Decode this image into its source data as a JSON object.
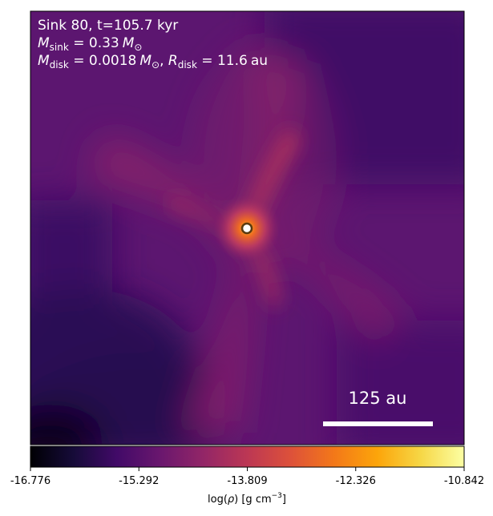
{
  "panel": {
    "title_line": "Sink 80, t=105.7 kyr",
    "mass_line": {
      "symbol": "M",
      "subscript": "sink",
      "equals": " = ",
      "value": "0.33",
      "unit_symbol": "M",
      "unit_subscript": "⊙"
    },
    "disk_line": {
      "mass_symbol": "M",
      "mass_subscript": "disk",
      "equals": " = ",
      "mass_value": "0.0018",
      "unit_symbol": "M",
      "unit_subscript": "⊙",
      "separator": ", ",
      "radius_symbol": "R",
      "radius_subscript": "disk",
      "radius_equals": " = ",
      "radius_value": "11.6",
      "radius_unit": "au"
    },
    "scale_bar_label": "125 au",
    "text_color": "#ffffff"
  },
  "colorbar": {
    "colormap": "inferno",
    "ticks": [
      "-16.776",
      "-15.292",
      "-13.809",
      "-12.326",
      "-10.842"
    ],
    "label_prefix": "log(",
    "label_rho": "ρ",
    "label_suffix": ") [g cm",
    "label_exp": "−3",
    "label_close": "]"
  }
}
